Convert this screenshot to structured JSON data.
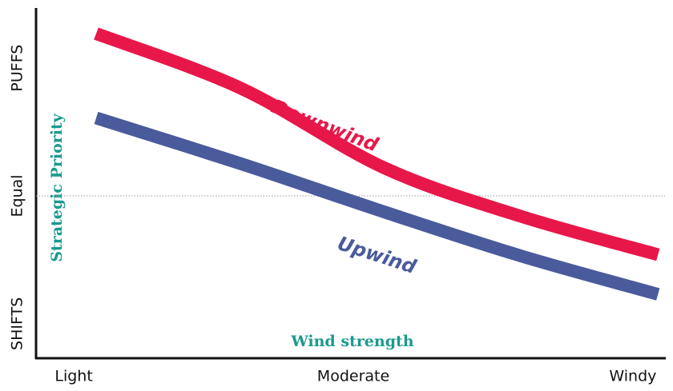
{
  "chart_data": {
    "type": "line",
    "xlabel": "Wind strength",
    "ylabel": "Strategic Priority",
    "x": [
      0.08,
      0.6,
      1.11,
      1.6,
      2.09
    ],
    "xlim": [
      -0.135,
      2.115
    ],
    "xticks": [
      {
        "value": 0,
        "label": "Light"
      },
      {
        "value": 1,
        "label": "Moderate"
      },
      {
        "value": 2,
        "label": "Windy"
      }
    ],
    "ylim": [
      -0.27,
      2.47
    ],
    "yticks": [
      {
        "value": 0,
        "label": "SHIFTS"
      },
      {
        "value": 1,
        "label": "Equal"
      },
      {
        "value": 2,
        "label": "PUFFS"
      }
    ],
    "series": [
      {
        "name": "Downwind",
        "color": "#e8174a",
        "values": [
          2.27,
          1.84,
          1.22,
          0.84,
          0.54
        ]
      },
      {
        "name": "Upwind",
        "color": "#4a5b9c",
        "values": [
          1.61,
          1.25,
          0.875,
          0.53,
          0.23
        ]
      }
    ]
  }
}
